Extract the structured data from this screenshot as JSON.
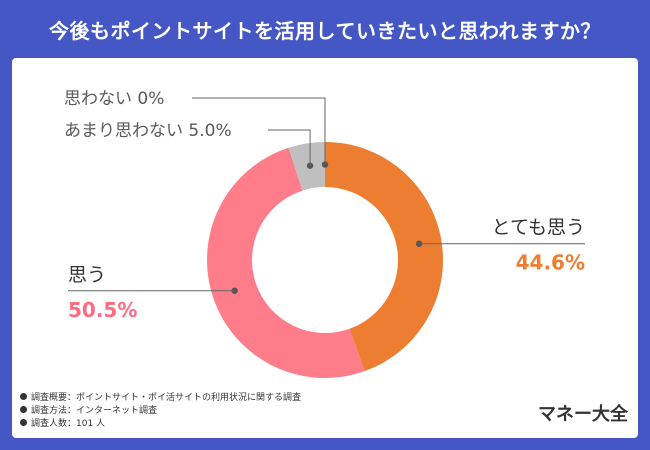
{
  "title": "今後もポイントサイトを活用していきたいと思われますか？",
  "chart_data": {
    "type": "pie",
    "donut": true,
    "categories": [
      "とても思う",
      "思う",
      "あまり思わない",
      "思わない"
    ],
    "values": [
      44.6,
      50.5,
      5.0,
      0
    ],
    "value_labels": [
      "44.6%",
      "50.5%",
      "5.0%",
      "0%"
    ],
    "colors": [
      "#ed7d31",
      "#ff7c8a",
      "#bfbfbf",
      "#bfbfbf"
    ],
    "label_colors": [
      "#ed7d31",
      "#ff6b81",
      "#595959",
      "#595959"
    ]
  },
  "notes": [
    "調査概要：ポイントサイト・ポイ活サイトの利用状況に関する調査",
    "調査方法：インターネット調査",
    "調査人数：101 人"
  ],
  "brand": "マネー大全"
}
